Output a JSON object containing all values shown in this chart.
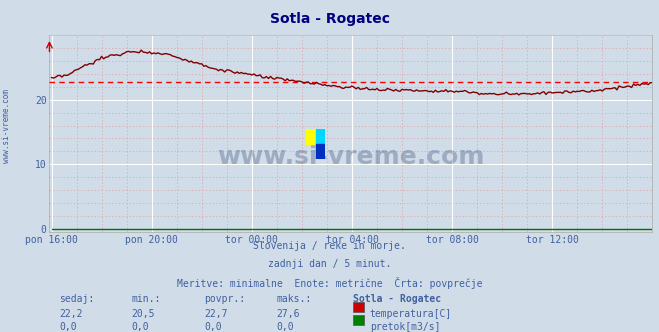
{
  "title": "Sotla - Rogatec",
  "title_color": "#000080",
  "bg_color": "#d0dce8",
  "plot_bg_color": "#d0dce8",
  "x_tick_labels": [
    "pon 16:00",
    "pon 20:00",
    "tor 00:00",
    "tor 04:00",
    "tor 08:00",
    "tor 12:00"
  ],
  "x_tick_positions": [
    0,
    48,
    96,
    144,
    192,
    240
  ],
  "y_ticks": [
    0,
    10,
    20
  ],
  "ylim": [
    -0.5,
    30
  ],
  "xlim": [
    -1,
    288
  ],
  "avg_line_value": 22.7,
  "avg_line_color": "#ff0000",
  "temp_line_color": "#800000",
  "flow_line_color": "#007000",
  "watermark_text": "www.si-vreme.com",
  "subtitle_lines": [
    "Slovenija / reke in morje.",
    "zadnji dan / 5 minut.",
    "Meritve: minimalne  Enote: metrične  Črta: povprečje"
  ],
  "subtitle_color": "#4060a0",
  "table_headers": [
    "sedaj:",
    "min.:",
    "povpr.:",
    "maks.:",
    "Sotla - Rogatec"
  ],
  "table_row1": [
    "22,2",
    "20,5",
    "22,7",
    "27,6"
  ],
  "table_row2": [
    "0,0",
    "0,0",
    "0,0",
    "0,0"
  ],
  "table_label1": "temperatura[C]",
  "table_label2": "pretok[m3/s]",
  "legend_color1": "#cc0000",
  "legend_color2": "#008000",
  "ylabel_text": "www.si-vreme.com",
  "ylabel_color": "#4060a0",
  "major_grid_color": "#ffffff",
  "minor_grid_color": "#e0a0a0",
  "logo_yellow": "#ffff00",
  "logo_cyan": "#00c0ff",
  "logo_blue": "#0000c0"
}
